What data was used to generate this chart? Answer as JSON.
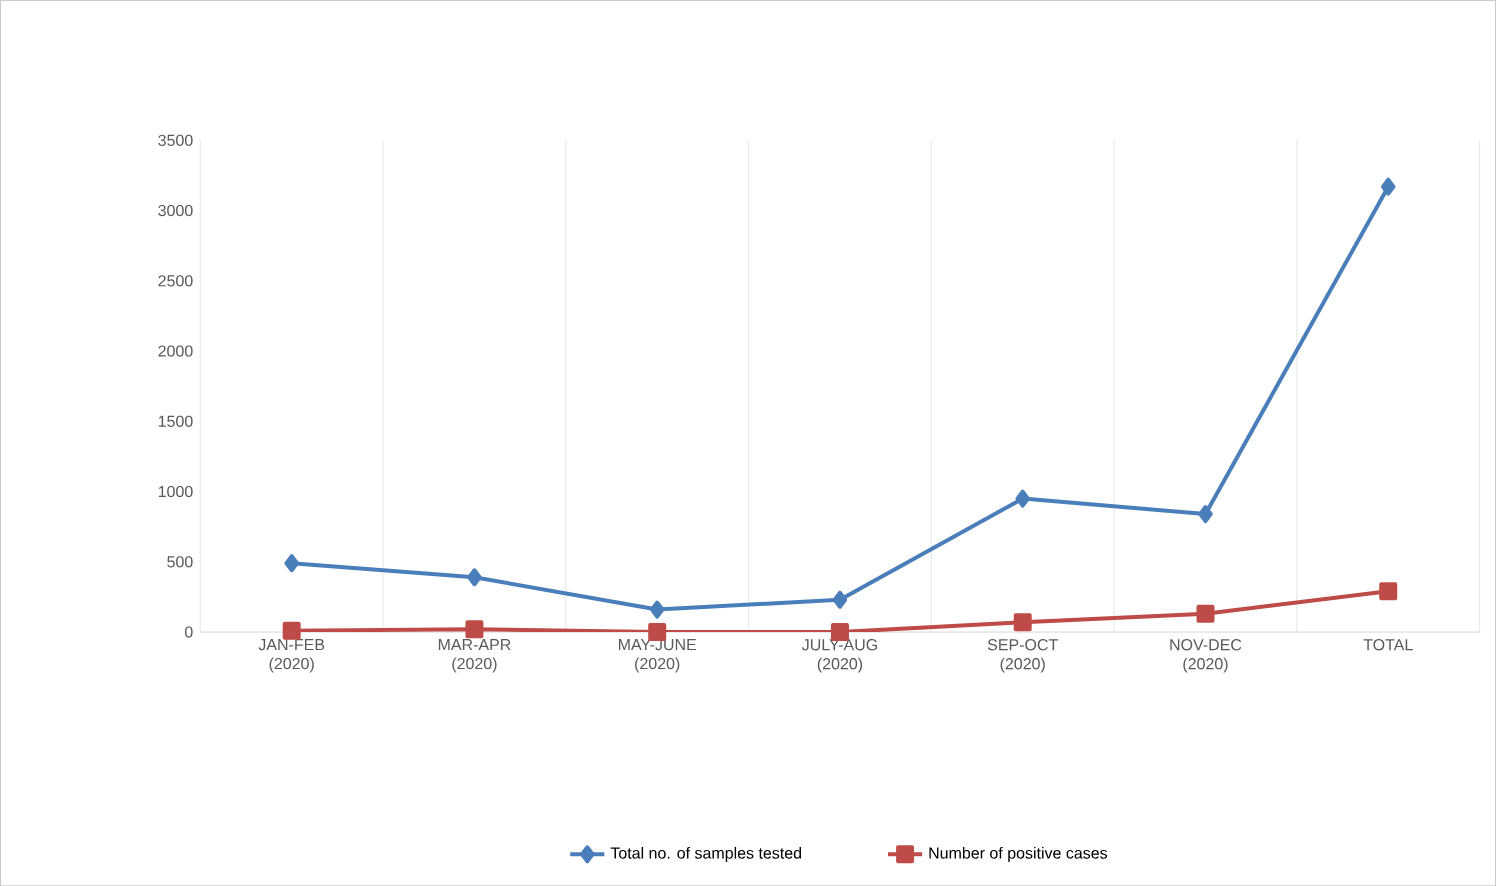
{
  "chart_data": {
    "type": "line",
    "categories": [
      "JAN-FEB (2020)",
      "MAR-APR (2020)",
      "MAY-JUNE (2020)",
      "JULY-AUG (2020)",
      "SEP-OCT (2020)",
      "NOV-DEC (2020)",
      "TOTAL"
    ],
    "series": [
      {
        "name": "Total no. of samples tested",
        "color": "#4a7ebb",
        "marker": "diamond",
        "values": [
          490,
          390,
          160,
          230,
          950,
          840,
          3170
        ]
      },
      {
        "name": "Number of positive cases",
        "color": "#be4b48",
        "marker": "square",
        "values": [
          10,
          20,
          0,
          0,
          70,
          130,
          290
        ]
      }
    ],
    "ylim": [
      0,
      3500
    ],
    "yticks": [
      0,
      500,
      1000,
      1500,
      2000,
      2500,
      3000,
      3500
    ],
    "grid": "x",
    "legend": "bottom",
    "line_style": "solid"
  }
}
